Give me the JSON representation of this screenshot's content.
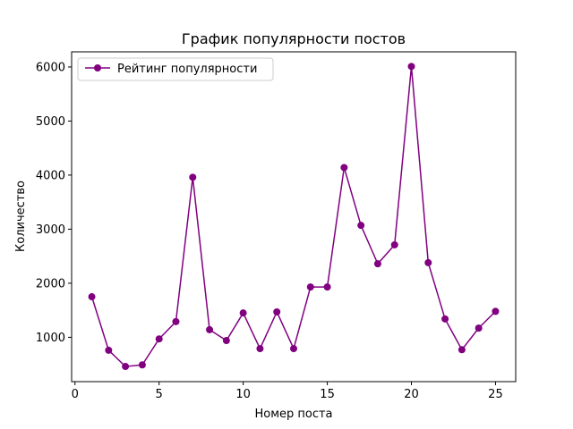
{
  "chart_data": {
    "type": "line",
    "title": "График популярности постов",
    "xlabel": "Номер поста",
    "ylabel": "Количество",
    "xlim": [
      -0.2,
      26.2
    ],
    "ylim": [
      180,
      6280
    ],
    "xticks": [
      0,
      5,
      10,
      15,
      20,
      25
    ],
    "yticks": [
      1000,
      2000,
      3000,
      4000,
      5000,
      6000
    ],
    "grid": false,
    "legend_position": "upper-left",
    "colors": {
      "series": "#800080",
      "axes": "#000000",
      "background": "#ffffff"
    },
    "series": [
      {
        "name": "Рейтинг популярности",
        "marker": "circle",
        "x": [
          1,
          2,
          3,
          4,
          5,
          6,
          7,
          8,
          9,
          10,
          11,
          12,
          13,
          14,
          15,
          16,
          17,
          18,
          19,
          20,
          21,
          22,
          23,
          24,
          25
        ],
        "values": [
          1750,
          760,
          460,
          490,
          970,
          1290,
          3960,
          1140,
          940,
          1450,
          790,
          1470,
          790,
          1930,
          1930,
          4140,
          3070,
          2360,
          2710,
          6010,
          2380,
          1340,
          770,
          1170,
          1480
        ]
      }
    ]
  }
}
